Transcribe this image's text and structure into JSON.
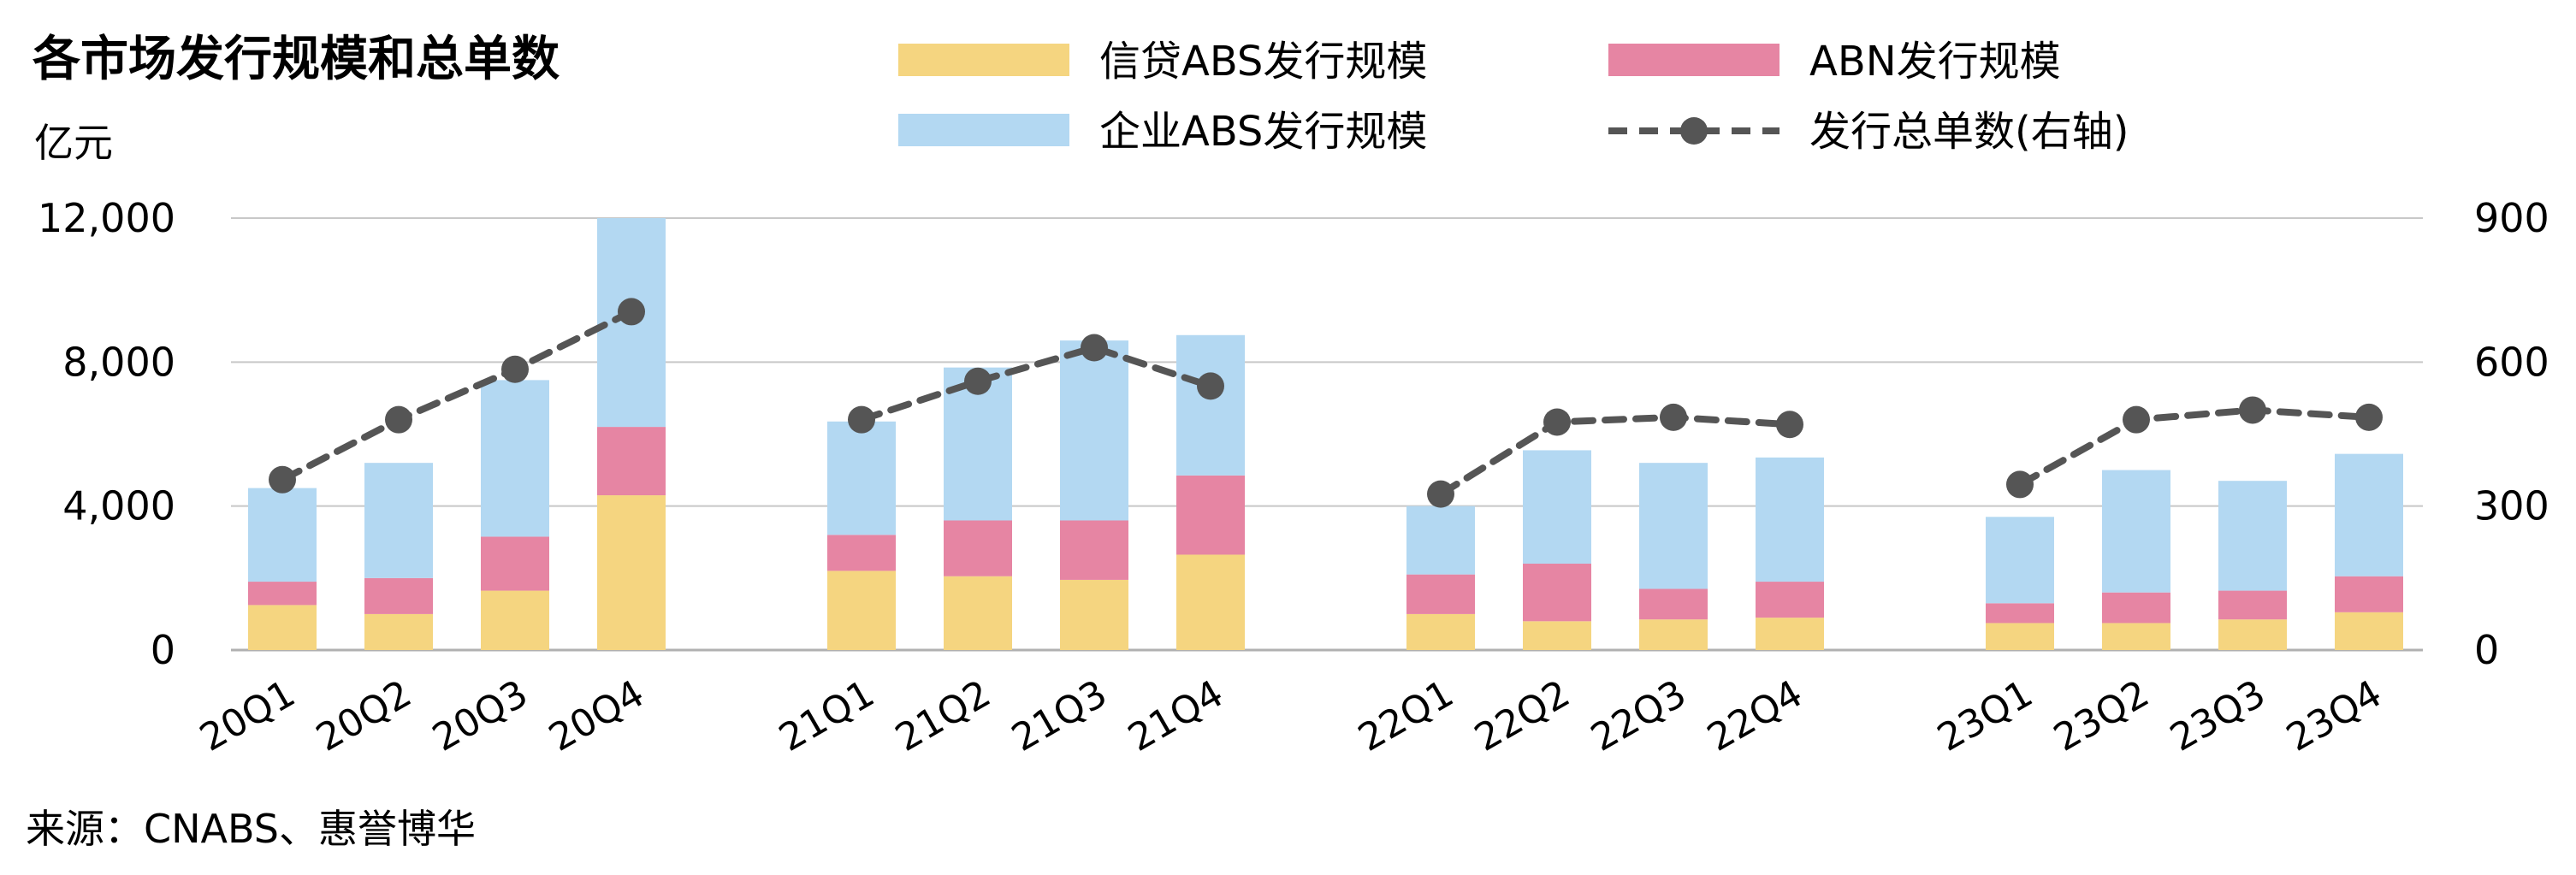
{
  "chart_data": {
    "type": "bar",
    "title": "各市场发行规模和总单数",
    "ylabel": "亿元",
    "source": "来源：CNABS、惠誉博华",
    "categories": [
      "20Q1",
      "20Q2",
      "20Q3",
      "20Q4",
      "21Q1",
      "21Q2",
      "21Q3",
      "21Q4",
      "22Q1",
      "22Q2",
      "22Q3",
      "22Q4",
      "23Q1",
      "23Q2",
      "23Q3",
      "23Q4"
    ],
    "groups": [
      {
        "categories": [
          "20Q1",
          "20Q2",
          "20Q3",
          "20Q4"
        ]
      },
      {
        "categories": [
          "21Q1",
          "21Q2",
          "21Q3",
          "21Q4"
        ]
      },
      {
        "categories": [
          "22Q1",
          "22Q2",
          "22Q3",
          "22Q4"
        ]
      },
      {
        "categories": [
          "23Q1",
          "23Q2",
          "23Q3",
          "23Q4"
        ]
      }
    ],
    "stacked": true,
    "series": [
      {
        "name": "信贷ABS发行规模",
        "color": "#f5d580",
        "axis": "left",
        "values": [
          1250,
          1000,
          1650,
          4300,
          2200,
          2050,
          1950,
          2650,
          1000,
          800,
          850,
          900,
          750,
          750,
          850,
          1050
        ]
      },
      {
        "name": "ABN发行规模",
        "color": "#e685a3",
        "axis": "left",
        "values": [
          650,
          1000,
          1500,
          1900,
          1000,
          1550,
          1650,
          2200,
          1100,
          1600,
          850,
          1000,
          550,
          850,
          800,
          1000
        ]
      },
      {
        "name": "企业ABS发行规模",
        "color": "#b3d8f2",
        "axis": "left",
        "values": [
          2600,
          3200,
          4350,
          5800,
          3150,
          4250,
          5000,
          3900,
          1900,
          3150,
          3500,
          3450,
          2400,
          3400,
          3050,
          3400
        ]
      },
      {
        "name": "发行总单数(右轴)",
        "type": "line",
        "color": "#555555",
        "axis": "right",
        "values": [
          355,
          480,
          585,
          705,
          480,
          560,
          630,
          550,
          325,
          475,
          485,
          470,
          345,
          480,
          500,
          485
        ]
      }
    ],
    "yaxis_left": {
      "min": 0,
      "max": 12000,
      "ticks": [
        "0",
        "4,000",
        "8,000",
        "12,000"
      ],
      "tick_values": [
        0,
        4000,
        8000,
        12000
      ]
    },
    "yaxis_right": {
      "min": 0,
      "max": 900,
      "ticks": [
        "0",
        "300",
        "600",
        "900"
      ],
      "tick_values": [
        0,
        300,
        600,
        900
      ]
    },
    "grid": true,
    "legend_position": "top"
  }
}
